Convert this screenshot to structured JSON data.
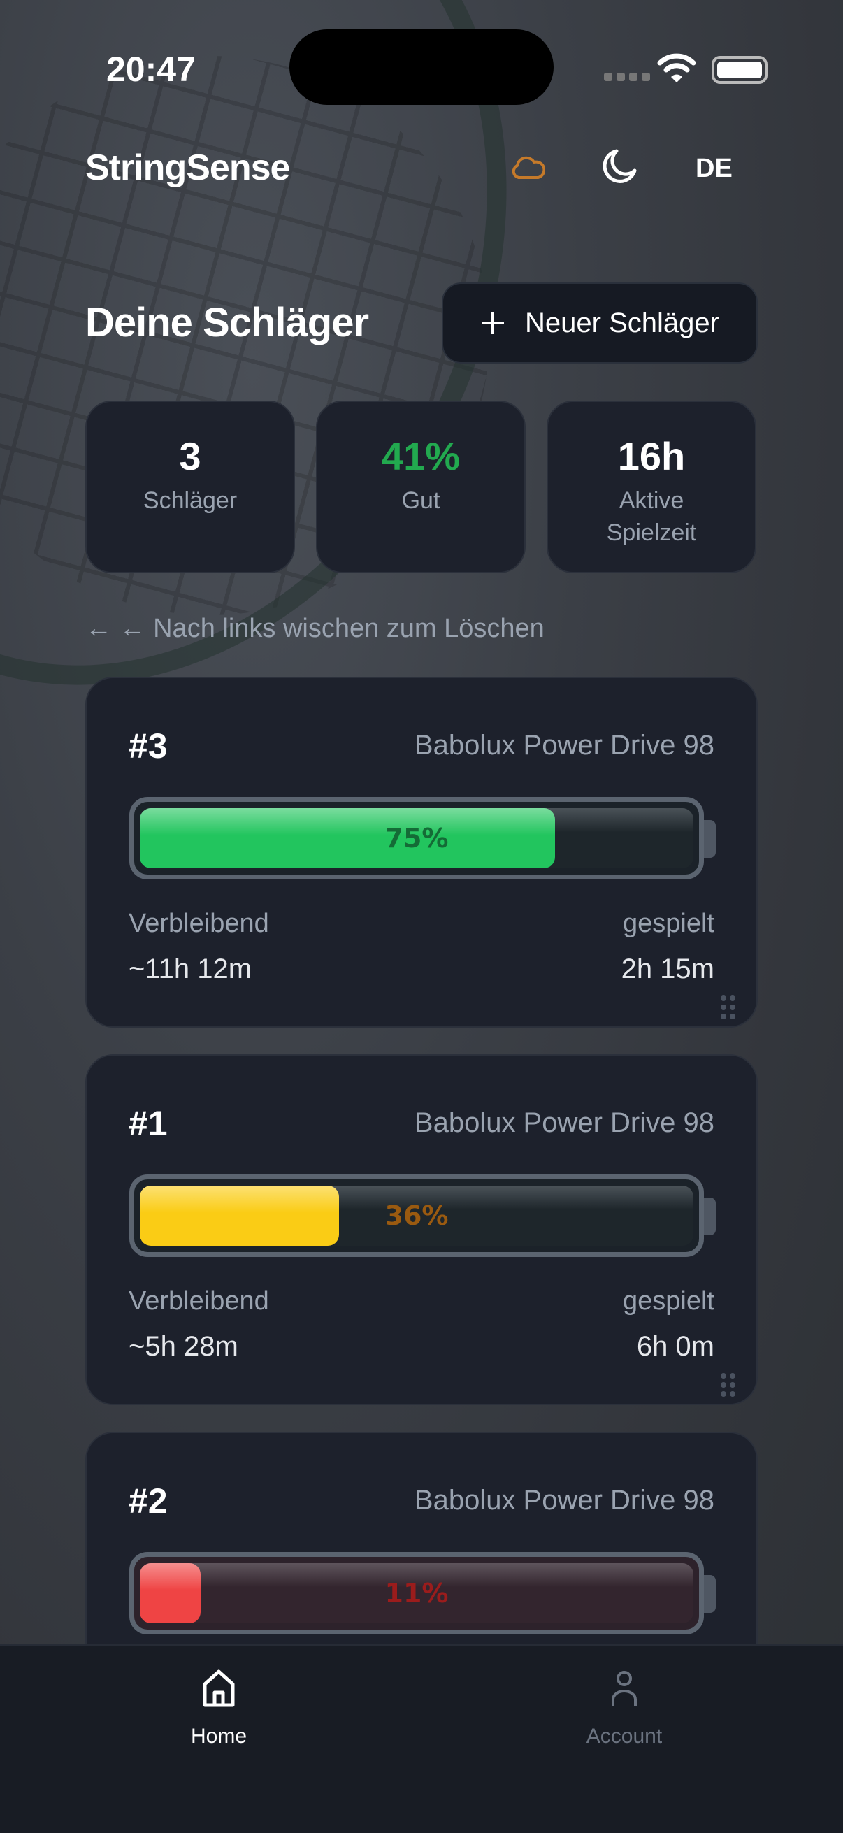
{
  "status_bar": {
    "time": "20:47"
  },
  "header": {
    "app_title": "StringSense",
    "weather_icon": "cloud-icon",
    "theme_icon": "moon-icon",
    "language": "DE"
  },
  "page": {
    "title": "Deine Schläger",
    "new_button": "Neuer Schläger"
  },
  "stats": [
    {
      "value": "3",
      "label": "Schläger"
    },
    {
      "value": "41%",
      "label": "Gut",
      "color": "#22a94f"
    },
    {
      "value": "16h",
      "label": "Aktive Spielzeit"
    }
  ],
  "swipe_hint": "← ← Nach links wischen zum Löschen",
  "rackets": [
    {
      "number": "#3",
      "model": "Babolux Power Drive 98",
      "percent": 75,
      "percent_label": "75%",
      "color": "#22c55e",
      "remaining_label": "Verbleibend",
      "remaining": "~11h 12m",
      "played_label": "gespielt",
      "played": "2h 15m"
    },
    {
      "number": "#1",
      "model": "Babolux Power Drive 98",
      "percent": 36,
      "percent_label": "36%",
      "color": "#facc15",
      "remaining_label": "Verbleibend",
      "remaining": "~5h 28m",
      "played_label": "gespielt",
      "played": "6h 0m"
    },
    {
      "number": "#2",
      "model": "Babolux Power Drive 98",
      "percent": 11,
      "percent_label": "11%",
      "color": "#ef4444"
    }
  ],
  "tabbar": {
    "home": "Home",
    "account": "Account"
  }
}
